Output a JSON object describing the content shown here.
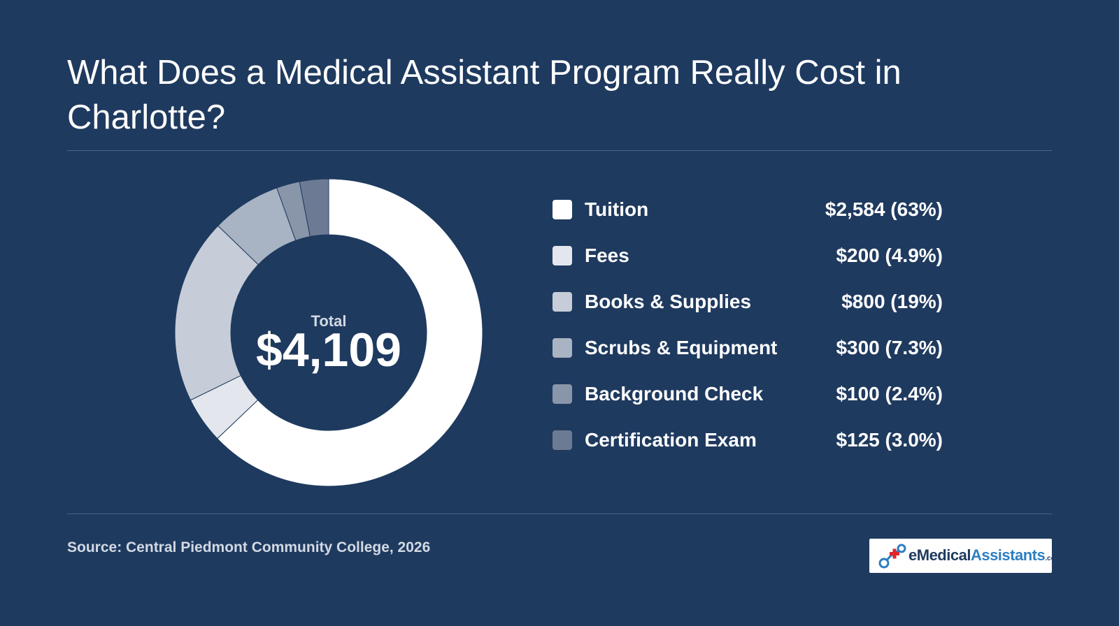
{
  "title": "What Does a Medical Assistant Program Really Cost in Charlotte?",
  "source": "Source: Central Piedmont Community College, 2026",
  "center": {
    "label": "Total",
    "value": "$4,109"
  },
  "logo": {
    "e": "e",
    "medical": "Medical",
    "assistants": "Assistants",
    "com": ".com"
  },
  "colors": {
    "background": "#1f3a5f",
    "divider": "#4d6583",
    "slice_border": "#1f3a5f"
  },
  "chart_data": {
    "type": "pie",
    "variant": "donut",
    "title": "What Does a Medical Assistant Program Really Cost in Charlotte?",
    "total": 4109,
    "slices": [
      {
        "label": "Tuition",
        "value": 2584,
        "percent": "63%",
        "display": "$2,584 (63%)",
        "color": "#ffffff"
      },
      {
        "label": "Fees",
        "value": 200,
        "percent": "4.9%",
        "display": "$200 (4.9%)",
        "color": "#e3e7ed"
      },
      {
        "label": "Books & Supplies",
        "value": 800,
        "percent": "19%",
        "display": "$800 (19%)",
        "color": "#c6cdd8"
      },
      {
        "label": "Scrubs & Equipment",
        "value": 300,
        "percent": "7.3%",
        "display": "$300 (7.3%)",
        "color": "#a8b3c3"
      },
      {
        "label": "Background Check",
        "value": 100,
        "percent": "2.4%",
        "display": "$100 (2.4%)",
        "color": "#8996aa"
      },
      {
        "label": "Certification Exam",
        "value": 125,
        "percent": "3.0%",
        "display": "$125 (3.0%)",
        "color": "#6c7b93"
      }
    ],
    "legend_position": "right"
  }
}
